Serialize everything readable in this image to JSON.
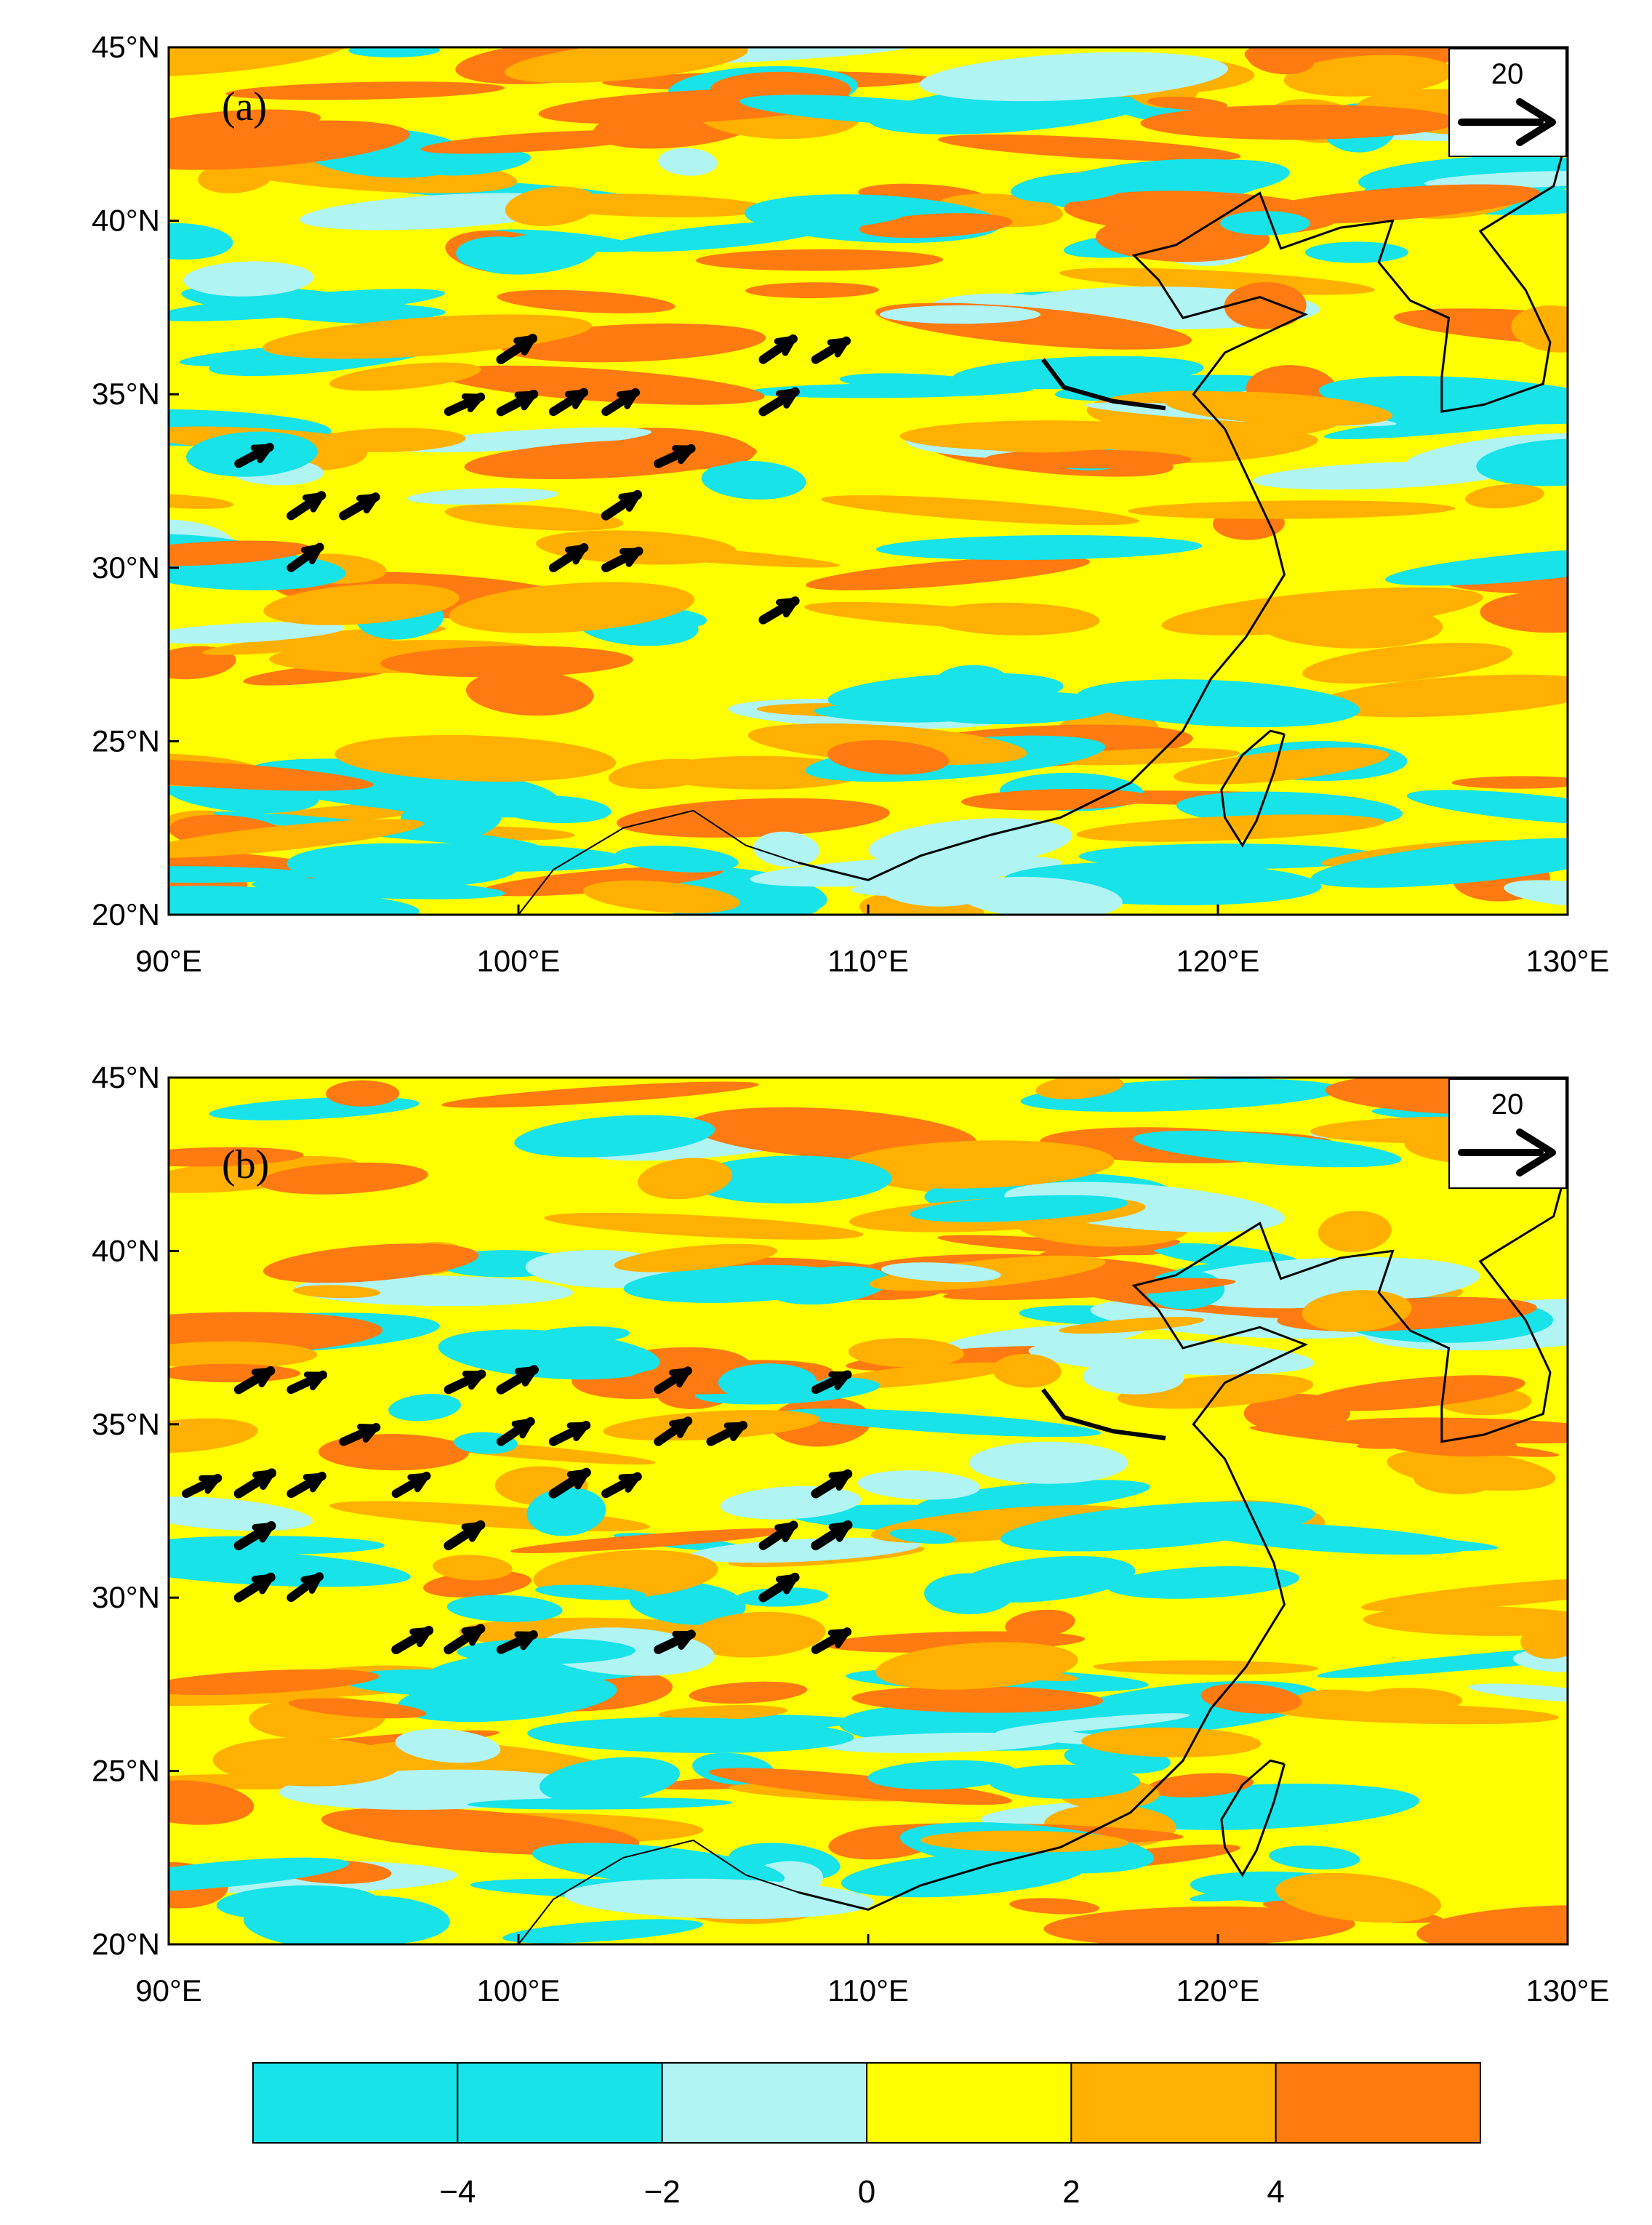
{
  "panels": [
    {
      "label": "(a)",
      "lat_ticks": [
        "45°N",
        "40°N",
        "35°N",
        "30°N",
        "25°N",
        "20°N"
      ],
      "lon_ticks": [
        "90°E",
        "100°E",
        "110°E",
        "120°E",
        "130°E"
      ],
      "lon_range": [
        90,
        130
      ],
      "lat_range": [
        20,
        45
      ],
      "reference_vector": {
        "value": 20,
        "label": "20"
      },
      "vector_field": "southwesterly-to-westerly"
    },
    {
      "label": "(b)",
      "lat_ticks": [
        "45°N",
        "40°N",
        "35°N",
        "30°N",
        "25°N",
        "20°N"
      ],
      "lon_ticks": [
        "90°E",
        "100°E",
        "110°E",
        "120°E",
        "130°E"
      ],
      "lon_range": [
        90,
        130
      ],
      "lat_range": [
        20,
        45
      ],
      "reference_vector": {
        "value": 20,
        "label": "20"
      },
      "vector_field": "southwesterly-to-westerly"
    }
  ],
  "colorbar": {
    "colors": [
      "#17e3e8",
      "#17e3e8",
      "#b0f4f4",
      "#ffff00",
      "#ffb000",
      "#ff7a10"
    ],
    "labels": [
      "−4",
      "−2",
      "0",
      "2",
      "4"
    ]
  }
}
